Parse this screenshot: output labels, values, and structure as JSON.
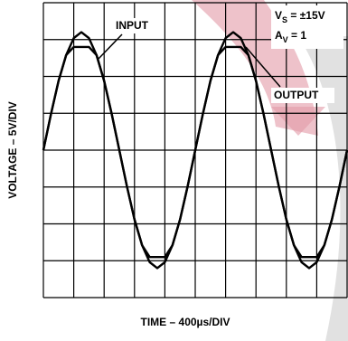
{
  "chart_data": {
    "type": "line",
    "x_label": "TIME – 400µs/DIV",
    "y_label": "VOLTAGE – 5V/DIV",
    "x": [
      0,
      100,
      200,
      300,
      400,
      500,
      600,
      700,
      800,
      900,
      1000,
      1100,
      1200,
      1300,
      1400,
      1500,
      1600,
      1700,
      1800,
      1900,
      2000,
      2100,
      2200,
      2300,
      2400,
      2500,
      2600,
      2700,
      2800,
      2900,
      3000,
      3100,
      3200,
      3300,
      3400,
      3500,
      3600,
      3700,
      3800,
      3900,
      4000
    ],
    "series": [
      {
        "color": "#000000",
        "values": [
          0,
          4.9,
          9.4,
          12.9,
          15.2,
          16,
          15.2,
          12.9,
          9.4,
          4.9,
          0,
          -4.9,
          -9.4,
          -12.9,
          -15.2,
          -16,
          -15.2,
          -12.9,
          -9.4,
          -4.9,
          0,
          4.9,
          9.4,
          12.9,
          15.2,
          16,
          15.2,
          12.9,
          9.4,
          4.9,
          0,
          -4.9,
          -9.4,
          -12.9,
          -15.2,
          -16,
          -15.2,
          -12.9,
          -9.4,
          -4.9,
          0
        ]
      },
      {
        "color": "#000000",
        "values": [
          0,
          4.9,
          9.4,
          12.9,
          14,
          14,
          14,
          12.9,
          9.4,
          4.9,
          0,
          -4.9,
          -9.4,
          -12.9,
          -14.5,
          -14.5,
          -14.5,
          -12.9,
          -9.4,
          -4.9,
          0,
          4.9,
          9.4,
          12.9,
          14,
          14,
          14,
          12.9,
          9.4,
          4.9,
          0,
          -4.9,
          -9.4,
          -12.9,
          -14.5,
          -14.5,
          -14.5,
          -12.9,
          -9.4,
          -4.9,
          0
        ]
      }
    ],
    "xlim": [
      0,
      4000
    ],
    "ylim": [
      -20,
      20
    ],
    "xticks": [
      0,
      400,
      800,
      1200,
      1600,
      2000,
      2400,
      2800,
      3200,
      3600,
      4000
    ],
    "yticks": [
      -20,
      -15,
      -10,
      -5,
      0,
      5,
      10,
      15,
      20
    ],
    "grid": true,
    "annotations": {
      "input": "INPUT",
      "output": "OUTPUT",
      "supply": [
        "V",
        "S",
        " = ±15V"
      ],
      "gain": [
        "A",
        "V",
        " = 1"
      ]
    }
  }
}
